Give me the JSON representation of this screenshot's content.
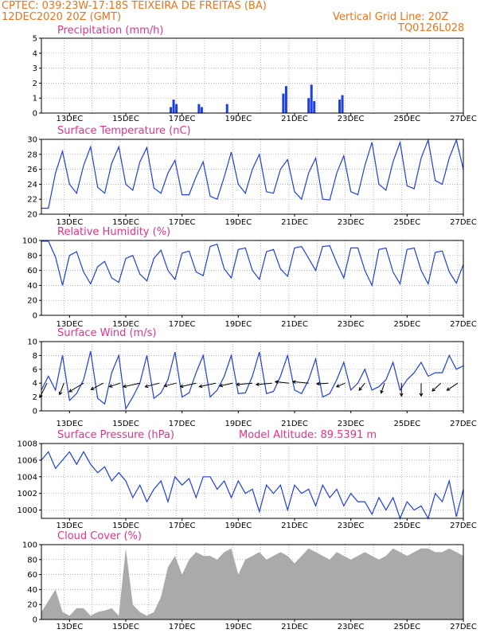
{
  "header": {
    "station": "CPTEC:   039:23W-17:18S   TEIXEIRA DE FREITAS (BA)",
    "date": "12DEC2020 20Z (GMT)",
    "grid_note": "Vertical Grid Line: 20Z",
    "code": "TQ0126L028"
  },
  "x_ticks": [
    "13DEC",
    "15DEC",
    "17DEC",
    "19DEC",
    "21DEC",
    "23DEC",
    "25DEC",
    "27DEC"
  ],
  "colors": {
    "title": "#e0338a",
    "header": "#e8741e",
    "line": "#1f3fe0",
    "cloud": "#aaaaaa",
    "wind_vector": "#000000"
  },
  "chart_data": [
    {
      "type": "bar",
      "title": "Precipitation (mm/h)",
      "x": [
        "16.6DEC",
        "16.7DEC",
        "16.8DEC",
        "17.6DEC",
        "17.7DEC",
        "18.6DEC",
        "20.6DEC",
        "20.7DEC",
        "21.5DEC",
        "21.6DEC",
        "21.7DEC",
        "22.6DEC",
        "22.7DEC"
      ],
      "values": [
        0.4,
        0.9,
        0.6,
        0.6,
        0.4,
        0.6,
        1.3,
        1.8,
        1.0,
        1.9,
        0.8,
        0.9,
        1.2
      ],
      "ylim": [
        0,
        5
      ],
      "yticks": [
        0,
        1,
        2,
        3,
        4,
        5
      ]
    },
    {
      "type": "line",
      "title": "Surface Temperature (nC)",
      "x_days": [
        12.0,
        12.25,
        12.5,
        12.75,
        13.0,
        13.25,
        13.5,
        13.75,
        14.0,
        14.25,
        14.5,
        14.75,
        15.0,
        15.25,
        15.5,
        15.75,
        16.0,
        16.25,
        16.5,
        16.75,
        17.0,
        17.25,
        17.5,
        17.75,
        18.0,
        18.25,
        18.5,
        18.75,
        19.0,
        19.25,
        19.5,
        19.75,
        20.0,
        20.25,
        20.5,
        20.75,
        21.0,
        21.25,
        21.5,
        21.75,
        22.0,
        22.25,
        22.5,
        22.75,
        23.0,
        23.25,
        23.5,
        23.75,
        24.0,
        24.25,
        24.5,
        24.75,
        25.0,
        25.25,
        25.5,
        25.75,
        26.0,
        26.25,
        26.5,
        26.75,
        27.0
      ],
      "values": [
        20.8,
        20.8,
        25.5,
        28.4,
        24.0,
        22.8,
        26.5,
        29.0,
        23.6,
        22.8,
        26.8,
        29.0,
        24.0,
        23.2,
        27.0,
        28.9,
        23.5,
        22.8,
        25.5,
        27.2,
        22.6,
        22.6,
        25.0,
        27.0,
        22.4,
        22.0,
        25.0,
        28.3,
        24.0,
        22.8,
        26.0,
        28.0,
        23.0,
        22.8,
        26.0,
        27.3,
        23.0,
        22.0,
        25.5,
        27.5,
        22.0,
        21.9,
        25.5,
        27.8,
        23.0,
        22.6,
        26.5,
        29.6,
        24.0,
        23.2,
        27.0,
        29.6,
        23.8,
        23.4,
        27.5,
        29.9,
        24.5,
        24.0,
        27.5,
        29.9,
        26.0
      ],
      "ylim": [
        20,
        30
      ],
      "yticks": [
        20,
        22,
        24,
        26,
        28,
        30
      ]
    },
    {
      "type": "line",
      "title": "Relative Humidity (%)",
      "x_days": [
        12.0,
        12.25,
        12.5,
        12.75,
        13.0,
        13.25,
        13.5,
        13.75,
        14.0,
        14.25,
        14.5,
        14.75,
        15.0,
        15.25,
        15.5,
        15.75,
        16.0,
        16.25,
        16.5,
        16.75,
        17.0,
        17.25,
        17.5,
        17.75,
        18.0,
        18.25,
        18.5,
        18.75,
        19.0,
        19.25,
        19.5,
        19.75,
        20.0,
        20.25,
        20.5,
        20.75,
        21.0,
        21.25,
        21.5,
        21.75,
        22.0,
        22.25,
        22.5,
        22.75,
        23.0,
        23.25,
        23.5,
        23.75,
        24.0,
        24.25,
        24.5,
        24.75,
        25.0,
        25.25,
        25.5,
        25.75,
        26.0,
        26.25,
        26.5,
        26.75,
        27.0
      ],
      "values": [
        99,
        99,
        78,
        40,
        80,
        85,
        58,
        42,
        65,
        72,
        50,
        44,
        76,
        80,
        55,
        46,
        76,
        87,
        60,
        48,
        83,
        86,
        58,
        53,
        92,
        95,
        62,
        50,
        88,
        90,
        60,
        48,
        85,
        88,
        62,
        52,
        90,
        92,
        76,
        60,
        92,
        93,
        70,
        50,
        90,
        90,
        60,
        40,
        88,
        90,
        58,
        42,
        88,
        90,
        60,
        42,
        84,
        86,
        58,
        43,
        68
      ],
      "ylim": [
        0,
        100
      ],
      "yticks": [
        0,
        20,
        40,
        60,
        80,
        100
      ]
    },
    {
      "type": "line",
      "title": "Surface Wind (m/s)",
      "x_days": [
        12.0,
        12.25,
        12.5,
        12.75,
        13.0,
        13.25,
        13.5,
        13.75,
        14.0,
        14.25,
        14.5,
        14.75,
        15.0,
        15.25,
        15.5,
        15.75,
        16.0,
        16.25,
        16.5,
        16.75,
        17.0,
        17.25,
        17.5,
        17.75,
        18.0,
        18.25,
        18.5,
        18.75,
        19.0,
        19.25,
        19.5,
        19.75,
        20.0,
        20.25,
        20.5,
        20.75,
        21.0,
        21.25,
        21.5,
        21.75,
        22.0,
        22.25,
        22.5,
        22.75,
        23.0,
        23.25,
        23.5,
        23.75,
        24.0,
        24.25,
        24.5,
        24.75,
        25.0,
        25.25,
        25.5,
        25.75,
        26.0,
        26.25,
        26.5,
        26.75,
        27.0
      ],
      "values": [
        3.0,
        5.0,
        3.0,
        8.0,
        1.5,
        2.5,
        4.5,
        8.6,
        1.8,
        1.0,
        5.5,
        8.0,
        0.3,
        2.0,
        4.0,
        8.0,
        1.8,
        2.6,
        4.5,
        8.5,
        2.0,
        2.6,
        5.5,
        8.0,
        2.0,
        3.0,
        5.0,
        8.0,
        2.5,
        2.6,
        5.0,
        8.5,
        2.5,
        2.8,
        5.0,
        8.0,
        3.0,
        2.5,
        4.5,
        7.5,
        2.0,
        2.5,
        4.5,
        7.0,
        3.0,
        4.0,
        6.0,
        3.0,
        3.5,
        4.5,
        7.0,
        3.0,
        4.5,
        5.5,
        7.0,
        5.0,
        5.5,
        5.5,
        8.0,
        6.0,
        6.5
      ],
      "ylim": [
        0,
        10
      ],
      "yticks": [
        0,
        2,
        4,
        6,
        8,
        10
      ],
      "vectors": {
        "x_days": [
          12.2,
          12.8,
          13.5,
          14.2,
          14.8,
          15.5,
          16.2,
          16.8,
          17.5,
          18.2,
          18.8,
          19.5,
          20.2,
          20.8,
          21.5,
          22.2,
          22.8,
          23.5,
          24.2,
          24.8,
          25.5,
          26.2,
          26.8
        ],
        "u": [
          -1.0,
          -0.6,
          -2.0,
          -1.7,
          -1.5,
          -2.3,
          -2.0,
          -1.7,
          -2.2,
          -2.3,
          -1.8,
          -2.2,
          -2.2,
          -1.9,
          -2.2,
          -1.6,
          -1.2,
          -0.8,
          -0.5,
          0.0,
          0.0,
          -1.2,
          -1.5
        ],
        "v": [
          -2.0,
          -1.6,
          -1.2,
          -0.9,
          -0.5,
          -0.5,
          -0.5,
          -0.4,
          -0.5,
          -0.5,
          -0.4,
          -0.2,
          -0.2,
          0.2,
          0.2,
          -0.1,
          -0.5,
          -1.0,
          -1.4,
          -1.8,
          -1.8,
          -1.1,
          -1.0
        ]
      }
    },
    {
      "type": "line",
      "title": "Surface Pressure (hPa)",
      "subtitle": "Model Altitude: 89.5391 m",
      "x_days": [
        12.0,
        12.25,
        12.5,
        12.75,
        13.0,
        13.25,
        13.5,
        13.75,
        14.0,
        14.25,
        14.5,
        14.75,
        15.0,
        15.25,
        15.5,
        15.75,
        16.0,
        16.25,
        16.5,
        16.75,
        17.0,
        17.25,
        17.5,
        17.75,
        18.0,
        18.25,
        18.5,
        18.75,
        19.0,
        19.25,
        19.5,
        19.75,
        20.0,
        20.25,
        20.5,
        20.75,
        21.0,
        21.25,
        21.5,
        21.75,
        22.0,
        22.25,
        22.5,
        22.75,
        23.0,
        23.25,
        23.5,
        23.75,
        24.0,
        24.25,
        24.5,
        24.75,
        25.0,
        25.25,
        25.5,
        25.75,
        26.0,
        26.25,
        26.5,
        26.75,
        27.0
      ],
      "values": [
        1006.0,
        1007.0,
        1005.0,
        1006.0,
        1007.0,
        1005.5,
        1007.0,
        1005.5,
        1004.5,
        1005.2,
        1003.5,
        1004.5,
        1003.5,
        1001.5,
        1003.0,
        1001.0,
        1002.5,
        1003.5,
        1001.0,
        1004.0,
        1003.0,
        1003.8,
        1001.5,
        1004.0,
        1004.0,
        1002.5,
        1003.5,
        1001.5,
        1003.5,
        1002.0,
        1002.5,
        999.8,
        1003.0,
        1002.0,
        1003.0,
        1000.0,
        1003.0,
        1002.0,
        1002.5,
        1000.5,
        1003.0,
        1001.5,
        1002.5,
        1000.5,
        1002.0,
        1001.0,
        1001.0,
        999.5,
        1001.5,
        1000.0,
        1001.5,
        999.0,
        1001.0,
        1000.0,
        1000.5,
        999.0,
        1002.0,
        1001.0,
        1003.5,
        999.2,
        1002.5
      ],
      "ylim": [
        999,
        1008
      ],
      "yticks": [
        1000,
        1002,
        1004,
        1006,
        1008
      ]
    },
    {
      "type": "bar",
      "title": "Cloud Cover (%)",
      "x_days": [
        12.0,
        12.25,
        12.5,
        12.75,
        13.0,
        13.25,
        13.5,
        13.75,
        14.0,
        14.25,
        14.5,
        14.75,
        15.0,
        15.25,
        15.5,
        15.75,
        16.0,
        16.25,
        16.5,
        16.75,
        17.0,
        17.25,
        17.5,
        17.75,
        18.0,
        18.25,
        18.5,
        18.75,
        19.0,
        19.25,
        19.5,
        19.75,
        20.0,
        20.25,
        20.5,
        20.75,
        21.0,
        21.25,
        21.5,
        21.75,
        22.0,
        22.25,
        22.5,
        22.75,
        23.0,
        23.25,
        23.5,
        23.75,
        24.0,
        24.25,
        24.5,
        24.75,
        25.0,
        25.25,
        25.5,
        25.75,
        26.0,
        26.25,
        26.5,
        26.75,
        27.0
      ],
      "values": [
        10,
        25,
        40,
        10,
        5,
        15,
        15,
        5,
        10,
        12,
        15,
        5,
        95,
        20,
        10,
        5,
        10,
        30,
        70,
        85,
        60,
        80,
        90,
        85,
        85,
        80,
        90,
        95,
        60,
        80,
        85,
        90,
        80,
        85,
        90,
        85,
        75,
        85,
        95,
        90,
        85,
        80,
        90,
        85,
        80,
        85,
        90,
        85,
        80,
        85,
        95,
        90,
        85,
        90,
        95,
        95,
        90,
        90,
        95,
        90,
        85
      ],
      "ylim": [
        0,
        100
      ],
      "yticks": [
        0,
        20,
        40,
        60,
        80,
        100
      ]
    }
  ]
}
